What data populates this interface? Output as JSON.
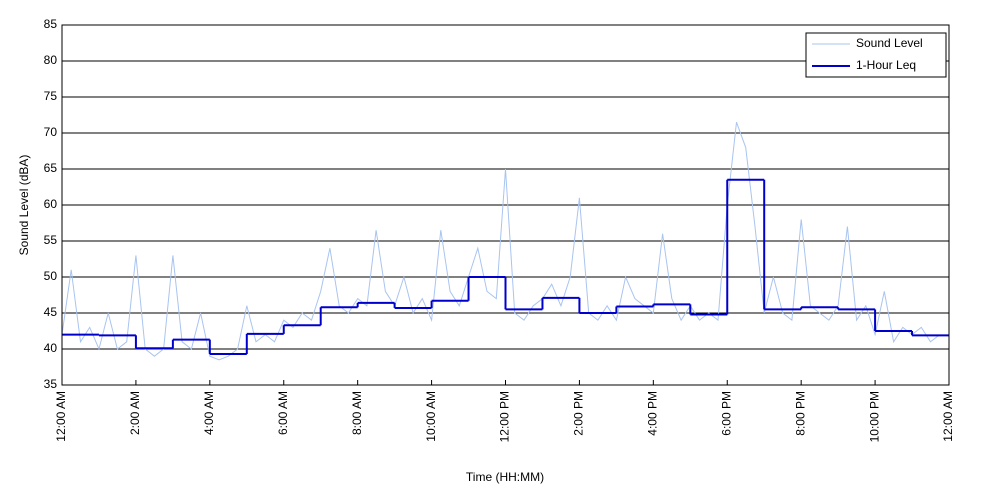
{
  "chart_data": {
    "type": "line",
    "x_label": "Time (HH:MM)",
    "y_label": "Sound Level (dBA)",
    "xlim": [
      0,
      24
    ],
    "xticks": [
      {
        "value": 0,
        "label": "12:00 AM"
      },
      {
        "value": 2,
        "label": "2:00 AM"
      },
      {
        "value": 4,
        "label": "4:00 AM"
      },
      {
        "value": 6,
        "label": "6:00 AM"
      },
      {
        "value": 8,
        "label": "8:00 AM"
      },
      {
        "value": 10,
        "label": "10:00 AM"
      },
      {
        "value": 12,
        "label": "12:00 PM"
      },
      {
        "value": 14,
        "label": "2:00 PM"
      },
      {
        "value": 16,
        "label": "4:00 PM"
      },
      {
        "value": 18,
        "label": "6:00 PM"
      },
      {
        "value": 20,
        "label": "8:00 PM"
      },
      {
        "value": 22,
        "label": "10:00 PM"
      },
      {
        "value": 24,
        "label": "12:00 AM"
      }
    ],
    "ylim": [
      35,
      85
    ],
    "yticks": [
      35,
      40,
      45,
      50,
      55,
      60,
      65,
      70,
      75,
      80,
      85
    ],
    "grid": true,
    "legend": "upper right",
    "series": [
      {
        "name": "Sound Level",
        "color": "#a9c4f0",
        "step": false,
        "x": [
          0,
          0.25,
          0.5,
          0.75,
          1,
          1.25,
          1.5,
          1.75,
          2,
          2.25,
          2.5,
          2.75,
          3,
          3.25,
          3.5,
          3.75,
          4,
          4.25,
          4.5,
          4.75,
          5,
          5.25,
          5.5,
          5.75,
          6,
          6.25,
          6.5,
          6.75,
          7,
          7.25,
          7.5,
          7.75,
          8,
          8.25,
          8.5,
          8.75,
          9,
          9.25,
          9.5,
          9.75,
          10,
          10.25,
          10.5,
          10.75,
          11,
          11.25,
          11.5,
          11.75,
          12,
          12.25,
          12.5,
          12.75,
          13,
          13.25,
          13.5,
          13.75,
          14,
          14.25,
          14.5,
          14.75,
          15,
          15.25,
          15.5,
          15.75,
          16,
          16.25,
          16.5,
          16.75,
          17,
          17.25,
          17.5,
          17.75,
          18,
          18.25,
          18.5,
          18.75,
          19,
          19.25,
          19.5,
          19.75,
          20,
          20.25,
          20.5,
          20.75,
          21,
          21.25,
          21.5,
          21.75,
          22,
          22.25,
          22.5,
          22.75,
          23,
          23.25,
          23.5,
          23.75
        ],
        "values": [
          42,
          51,
          41,
          43,
          40,
          45,
          40,
          41,
          53,
          40,
          39,
          40,
          53,
          41,
          40,
          45,
          39,
          38.5,
          39,
          40,
          46,
          41,
          42,
          41,
          44,
          43,
          45,
          44,
          48,
          54,
          46,
          45,
          47,
          46,
          56.5,
          48,
          46,
          50,
          45,
          47,
          44,
          56.5,
          48,
          46,
          50,
          54,
          48,
          47,
          65,
          45,
          44,
          46,
          47,
          49,
          46,
          50,
          61,
          45,
          44,
          46,
          44,
          50,
          47,
          46,
          45,
          56,
          47,
          44,
          46,
          44,
          45,
          44,
          60,
          71.5,
          68,
          57,
          45,
          50,
          45,
          44,
          58,
          46,
          45,
          44,
          46,
          57,
          44,
          46,
          42,
          48,
          41,
          43,
          42,
          43,
          41,
          42
        ]
      },
      {
        "name": "1-Hour Leq",
        "color": "#0000cc",
        "step": true,
        "x": [
          0,
          1,
          2,
          3,
          4,
          5,
          6,
          7,
          8,
          9,
          10,
          11,
          12,
          13,
          14,
          15,
          16,
          17,
          18,
          19,
          20,
          21,
          22,
          23
        ],
        "values": [
          42.0,
          41.9,
          40.1,
          41.3,
          39.3,
          42.1,
          43.3,
          45.8,
          46.4,
          45.7,
          46.7,
          50.0,
          45.5,
          47.1,
          45.0,
          45.9,
          46.2,
          44.8,
          63.5,
          45.5,
          45.8,
          45.5,
          42.5,
          41.9
        ]
      }
    ]
  }
}
